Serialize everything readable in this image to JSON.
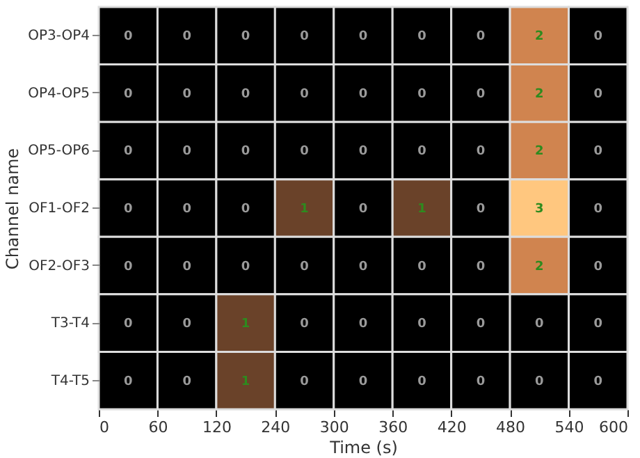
{
  "chart_data": {
    "type": "heatmap",
    "xlabel": "Time (s)",
    "ylabel": "Channel name",
    "y_categories": [
      "OP3-OP4",
      "OP4-OP5",
      "OP5-OP6",
      "OF1-OF2",
      "OF2-OF3",
      "T3-T4",
      "T4-T5"
    ],
    "cells": [
      [
        0,
        0,
        0,
        0,
        0,
        0,
        0,
        2,
        0
      ],
      [
        0,
        0,
        0,
        0,
        0,
        0,
        0,
        2,
        0
      ],
      [
        0,
        0,
        0,
        0,
        0,
        0,
        0,
        2,
        0
      ],
      [
        0,
        0,
        0,
        1,
        0,
        1,
        0,
        3,
        0
      ],
      [
        0,
        0,
        0,
        0,
        0,
        0,
        0,
        2,
        0
      ],
      [
        0,
        0,
        1,
        0,
        0,
        0,
        0,
        0,
        0
      ],
      [
        0,
        0,
        1,
        0,
        0,
        0,
        0,
        0,
        0
      ]
    ],
    "categories": [
      null,
      null,
      null,
      null,
      null,
      null,
      null,
      null,
      null
    ],
    "annotations": [
      "0",
      "60",
      "120",
      "240",
      "300",
      "360",
      "420",
      "480",
      "540",
      "600"
    ],
    "data_labels": true,
    "grid": false,
    "legend": false
  }
}
